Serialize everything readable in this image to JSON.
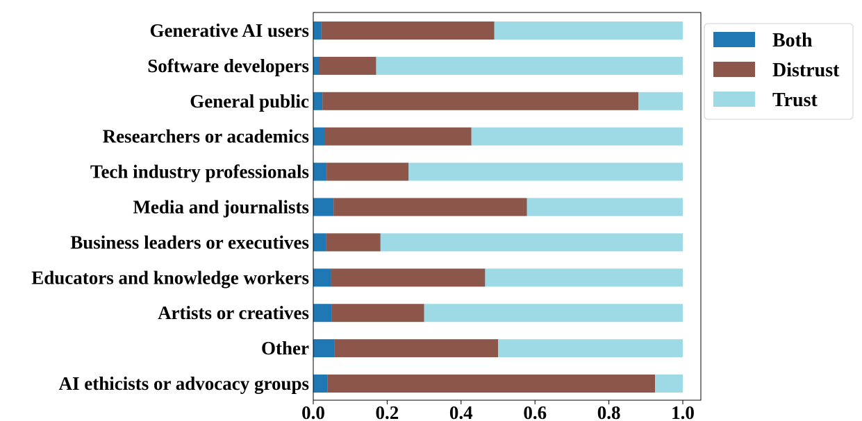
{
  "chart_data": {
    "type": "bar",
    "orientation": "horizontal",
    "stacked": true,
    "categories": [
      "Generative AI users",
      "Software developers",
      "General public",
      "Researchers or academics",
      "Tech industry professionals",
      "Media and journalists",
      "Business leaders or executives",
      "Educators and knowledge workers",
      "Artists or creatives",
      "Other",
      "AI ethicists or advocacy groups"
    ],
    "series": [
      {
        "name": "Both",
        "color": "#1f77b4",
        "values": [
          0.022,
          0.015,
          0.025,
          0.03,
          0.036,
          0.055,
          0.035,
          0.048,
          0.05,
          0.058,
          0.038
        ]
      },
      {
        "name": "Distrust",
        "color": "#8c564b",
        "values": [
          0.468,
          0.155,
          0.855,
          0.398,
          0.222,
          0.523,
          0.147,
          0.417,
          0.25,
          0.442,
          0.887
        ]
      },
      {
        "name": "Trust",
        "color": "#9edae5",
        "values": [
          0.51,
          0.83,
          0.12,
          0.572,
          0.742,
          0.422,
          0.818,
          0.535,
          0.7,
          0.5,
          0.075
        ]
      }
    ],
    "xlim": [
      0,
      1.05
    ],
    "xticks": [
      "0.0",
      "0.2",
      "0.4",
      "0.6",
      "0.8",
      "1.0"
    ],
    "xtick_values": [
      0,
      0.2,
      0.4,
      0.6,
      0.8,
      1.0
    ],
    "title": "",
    "xlabel": "",
    "ylabel": "",
    "grid": false,
    "legend": {
      "placement": "upper right outside",
      "entries": [
        "Both",
        "Distrust",
        "Trust"
      ]
    }
  }
}
